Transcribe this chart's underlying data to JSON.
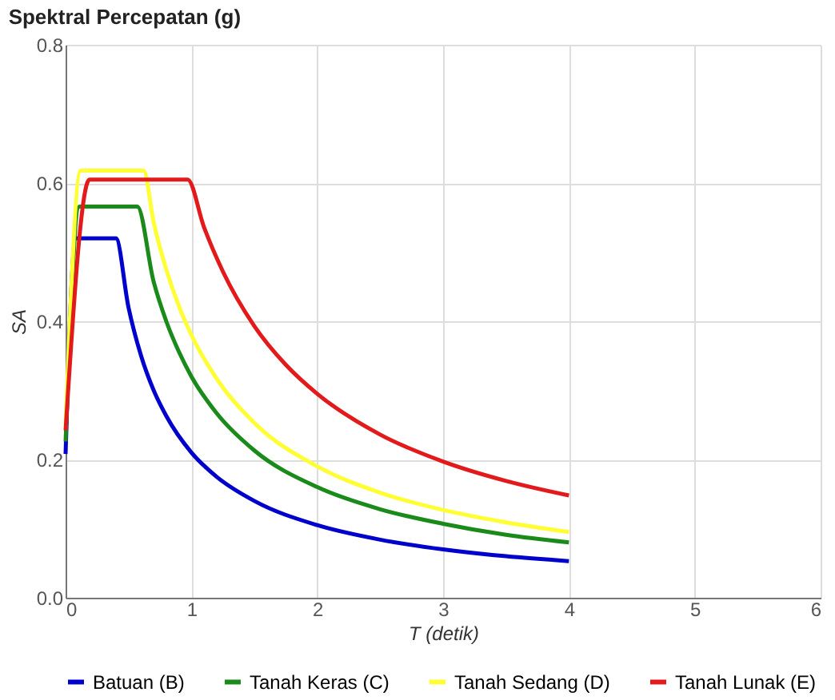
{
  "chart_data": {
    "type": "line",
    "title": "Spektral Percepatan (g)",
    "xlabel": "T (detik)",
    "ylabel": "SA",
    "xlim": [
      0,
      6
    ],
    "xticks": [
      0,
      1,
      2,
      3,
      4,
      5,
      6
    ],
    "ylim": [
      0,
      0.8
    ],
    "yticks": [
      {
        "value": 0,
        "label": "0.0"
      },
      0.2,
      0.4,
      0.6,
      0.8
    ],
    "grid": true,
    "legend": "bottom",
    "marker": "none",
    "line_style": "solid",
    "series": [
      {
        "name": "Batuan (B)",
        "color": "#0000cc",
        "x": [
          0,
          0.08,
          0.4,
          0.5,
          0.6,
          0.7,
          0.8,
          1.0,
          1.2,
          1.5,
          2.0,
          2.5,
          3.0,
          3.5,
          4.0
        ],
        "values": [
          0.208,
          0.52,
          0.52,
          0.42,
          0.35,
          0.3,
          0.263,
          0.21,
          0.175,
          0.14,
          0.105,
          0.084,
          0.07,
          0.06,
          0.053
        ]
      },
      {
        "name": "Tanah Keras (C)",
        "color": "#1a8a1a",
        "x": [
          0,
          0.11,
          0.57,
          0.7,
          0.8,
          0.9,
          1.0,
          1.2,
          1.5,
          2.0,
          2.5,
          3.0,
          3.5,
          4.0
        ],
        "values": [
          0.226,
          0.566,
          0.566,
          0.457,
          0.4,
          0.356,
          0.32,
          0.267,
          0.213,
          0.16,
          0.128,
          0.107,
          0.091,
          0.08
        ]
      },
      {
        "name": "Tanah Sedang (D)",
        "color": "#ffff33",
        "x": [
          0,
          0.12,
          0.62,
          0.7,
          0.8,
          0.9,
          1.0,
          1.2,
          1.5,
          2.0,
          2.5,
          3.0,
          3.5,
          4.0
        ],
        "values": [
          0.247,
          0.618,
          0.618,
          0.543,
          0.475,
          0.422,
          0.38,
          0.317,
          0.253,
          0.19,
          0.152,
          0.127,
          0.109,
          0.095
        ]
      },
      {
        "name": "Tanah Lunak (E)",
        "color": "#e31a1c",
        "x": [
          0,
          0.19,
          0.97,
          1.1,
          1.25,
          1.5,
          1.75,
          2.0,
          2.5,
          3.0,
          3.5,
          4.0
        ],
        "values": [
          0.242,
          0.605,
          0.605,
          0.536,
          0.472,
          0.393,
          0.337,
          0.295,
          0.236,
          0.197,
          0.169,
          0.148
        ]
      }
    ]
  }
}
